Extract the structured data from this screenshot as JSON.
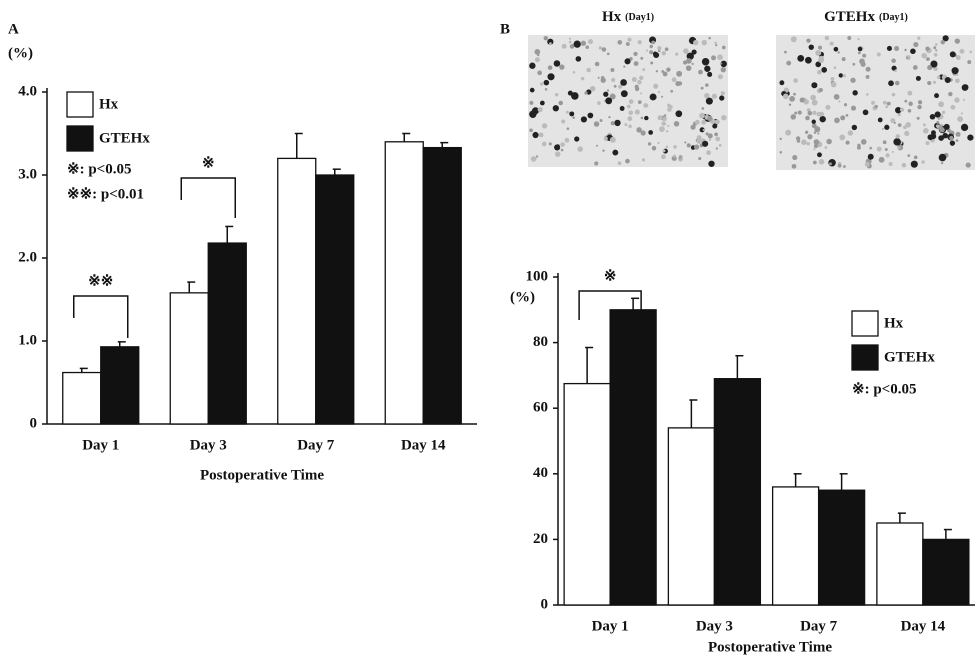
{
  "chart_data": [
    {
      "type": "bar",
      "panel_label": "A",
      "y_unit": "(%)",
      "x_label": "Postoperative Time",
      "categories": [
        "Day 1",
        "Day 3",
        "Day 7",
        "Day 14"
      ],
      "series": [
        {
          "name": "Hx",
          "color": "#ffffff",
          "values": [
            0.62,
            1.58,
            3.2,
            3.4
          ],
          "errors": [
            0.05,
            0.13,
            0.3,
            0.1
          ]
        },
        {
          "name": "GTEHx",
          "color": "#111111",
          "values": [
            0.93,
            2.18,
            3.0,
            3.33
          ],
          "errors": [
            0.06,
            0.2,
            0.07,
            0.06
          ]
        }
      ],
      "ylim": [
        0,
        4
      ],
      "yticks": [
        0,
        {
          "value": 1,
          "label": "1.0"
        },
        {
          "value": 2,
          "label": "2.0"
        },
        {
          "value": 3,
          "label": "3.0"
        },
        {
          "value": 4,
          "label": "4.0"
        }
      ],
      "significance_notes": [
        "※: p<0.05",
        "※※: p<0.01"
      ],
      "annotations": [
        "※※",
        "※"
      ]
    },
    {
      "type": "bar",
      "panel_label": "B",
      "y_unit": "(%)",
      "x_label": "Postoperative Time",
      "categories": [
        "Day 1",
        "Day 3",
        "Day 7",
        "Day 14"
      ],
      "series": [
        {
          "name": "Hx",
          "color": "#ffffff",
          "values": [
            67.5,
            54,
            36,
            25
          ],
          "errors": [
            11,
            8.5,
            4,
            3
          ]
        },
        {
          "name": "GTEHx",
          "color": "#111111",
          "values": [
            90,
            69,
            35,
            20
          ],
          "errors": [
            3.5,
            7,
            5,
            3
          ]
        }
      ],
      "ylim": [
        0,
        100
      ],
      "yticks": [
        0,
        20,
        40,
        60,
        80,
        100
      ],
      "significance_notes": [
        "※: p<0.05"
      ],
      "annotations": [
        "※"
      ]
    }
  ],
  "images": [
    {
      "title": "Hx",
      "note": "(Day1)"
    },
    {
      "title": "GTEHx",
      "note": "(Day1)"
    }
  ]
}
